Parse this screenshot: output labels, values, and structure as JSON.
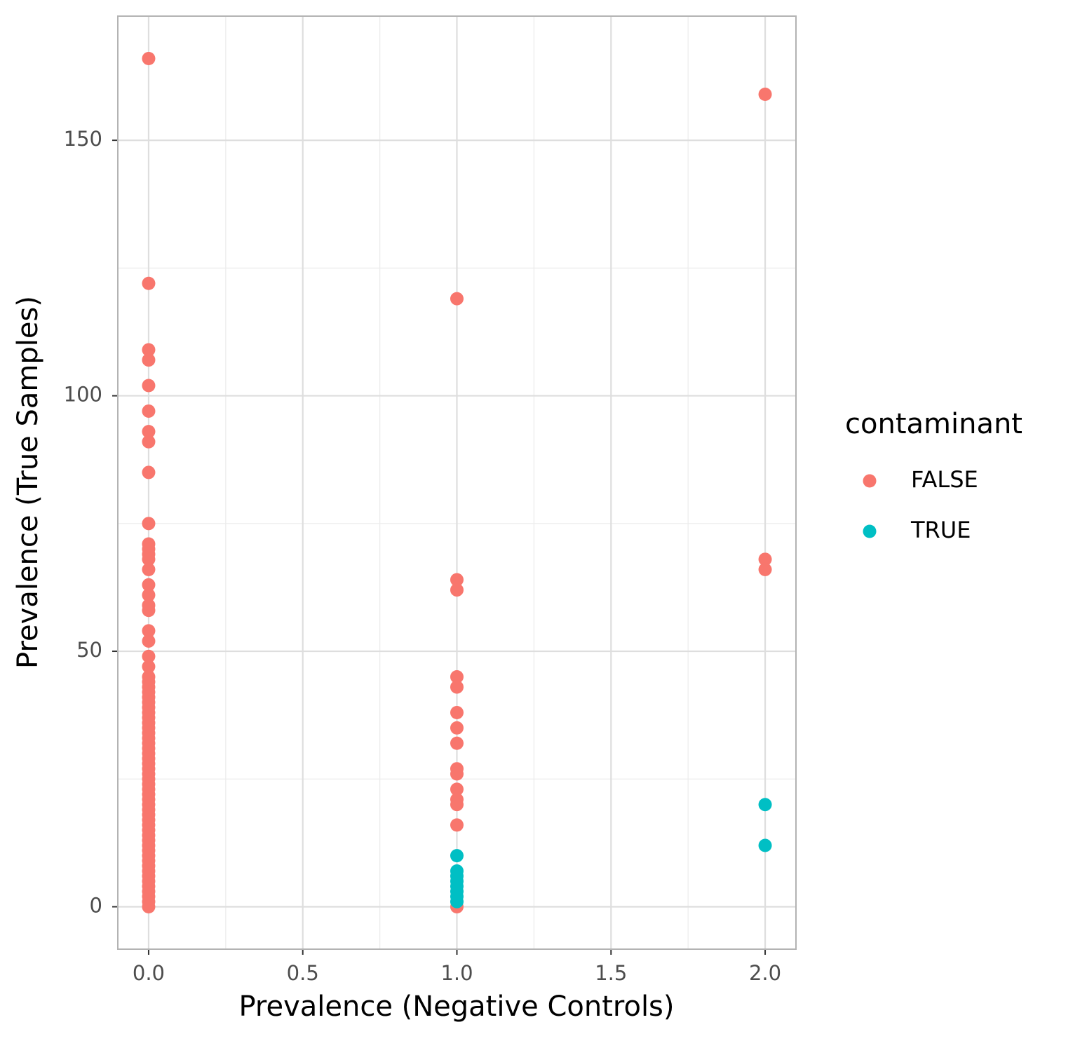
{
  "chart_data": {
    "type": "scatter",
    "x_label": "Prevalence (Negative Controls)",
    "y_label": "Prevalence (True Samples)",
    "legend_title": "contaminant",
    "legend_position": "right",
    "grid": true,
    "xlim": [
      -0.1,
      2.1
    ],
    "ylim": [
      -8.3,
      174.3
    ],
    "xticks": [
      {
        "value": 0,
        "label": "0.0"
      },
      {
        "value": 0.5,
        "label": "0.5"
      },
      {
        "value": 1,
        "label": "1.0"
      },
      {
        "value": 1.5,
        "label": "1.5"
      },
      {
        "value": 2,
        "label": "2.0"
      }
    ],
    "yticks": [
      0,
      50,
      100,
      150
    ],
    "x_minor_ticks": [
      0.25,
      0.75,
      1.25,
      1.75
    ],
    "y_minor_ticks": [
      25,
      75,
      125
    ],
    "series": [
      {
        "name": "FALSE",
        "color": "#F8766D",
        "x": [
          0,
          0,
          0,
          0,
          0,
          0,
          0,
          0,
          0,
          0,
          0,
          0,
          0,
          0,
          0,
          0,
          0,
          0,
          0,
          0,
          0,
          0,
          0,
          0,
          0,
          0,
          0,
          0,
          0,
          0,
          0,
          0,
          0,
          0,
          0,
          0,
          0,
          0,
          0,
          0,
          0,
          0,
          0,
          0,
          0,
          0,
          0,
          0,
          0,
          0,
          0,
          0,
          0,
          0,
          0,
          0,
          0,
          0,
          0,
          0,
          0,
          0,
          0,
          0,
          0,
          0,
          0,
          0,
          0,
          1,
          1,
          1,
          1,
          1,
          1,
          1,
          1,
          1,
          1,
          1,
          1,
          1,
          1,
          1,
          2,
          2,
          2
        ],
        "y": [
          166,
          122,
          109,
          107,
          102,
          97,
          93,
          91,
          85,
          75,
          71,
          70,
          69,
          68,
          66,
          63,
          61,
          59,
          58,
          54,
          52,
          49,
          47,
          45,
          44,
          43,
          42,
          41,
          40,
          39,
          38,
          37,
          36,
          35,
          34,
          33,
          32,
          31,
          30,
          29,
          28,
          27,
          26,
          25,
          24,
          23,
          22,
          21,
          20,
          19,
          18,
          17,
          16,
          15,
          14,
          13,
          12,
          11,
          10,
          9,
          8,
          7,
          6,
          5,
          4,
          3,
          2,
          1,
          0,
          119,
          64,
          62,
          45,
          43,
          38,
          35,
          32,
          27,
          26,
          23,
          21,
          20,
          16,
          0,
          159,
          68,
          66
        ]
      },
      {
        "name": "TRUE",
        "color": "#00BFC4",
        "x": [
          1,
          1,
          1,
          1,
          1,
          1,
          1,
          1,
          2,
          2
        ],
        "y": [
          10,
          7,
          6,
          5,
          4,
          3,
          2,
          1,
          20,
          12
        ]
      }
    ]
  }
}
